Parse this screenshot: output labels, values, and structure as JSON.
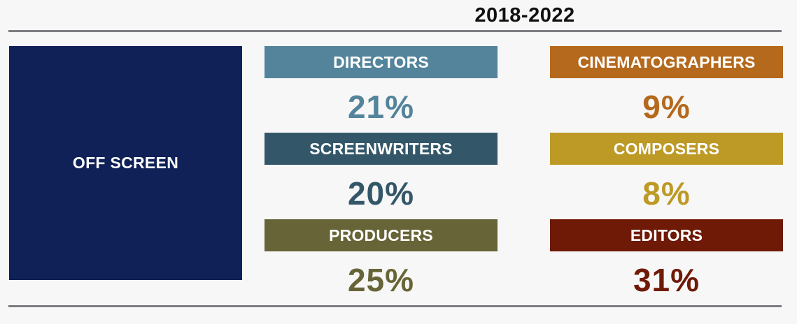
{
  "title": "2018-2022",
  "side_label": "OFF SCREEN",
  "categories": [
    {
      "label": "DIRECTORS",
      "value": "21%",
      "color": "#53849b"
    },
    {
      "label": "SCREENWRITERS",
      "value": "20%",
      "color": "#335769"
    },
    {
      "label": "PRODUCERS",
      "value": "25%",
      "color": "#676537"
    },
    {
      "label": "CINEMATOGRAPHERS",
      "value": "9%",
      "color": "#b5691c"
    },
    {
      "label": "COMPOSERS",
      "value": "8%",
      "color": "#bd9926"
    },
    {
      "label": "EDITORS",
      "value": "31%",
      "color": "#6f1a06"
    }
  ]
}
